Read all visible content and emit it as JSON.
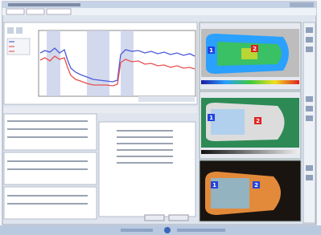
{
  "images": [
    {
      "markers": [
        "1",
        "2"
      ]
    },
    {
      "markers": [
        "1",
        "2"
      ]
    },
    {
      "markers": [
        "1",
        "2"
      ]
    }
  ]
}
